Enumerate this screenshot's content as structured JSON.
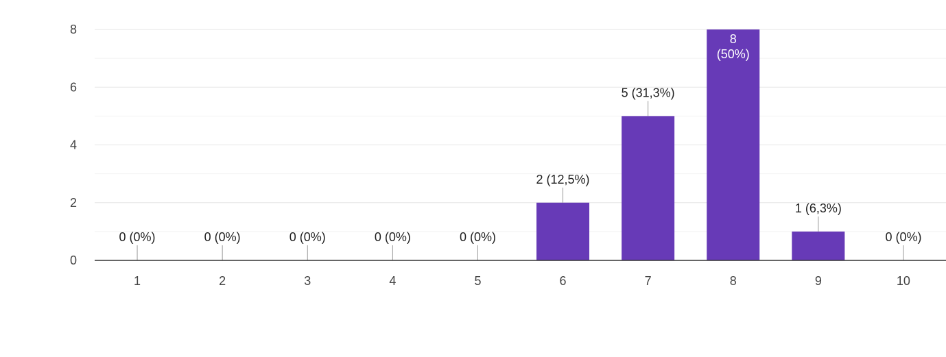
{
  "chart_data": {
    "type": "bar",
    "categories": [
      "1",
      "2",
      "3",
      "4",
      "5",
      "6",
      "7",
      "8",
      "9",
      "10"
    ],
    "values": [
      0,
      0,
      0,
      0,
      0,
      2,
      5,
      8,
      1,
      0
    ],
    "data_labels": [
      "0 (0%)",
      "0 (0%)",
      "0 (0%)",
      "0 (0%)",
      "0 (0%)",
      "2 (12,5%)",
      "5 (31,3%)",
      "8 (50%)",
      "1 (6,3%)",
      "0 (0%)"
    ],
    "y_ticks": [
      0,
      2,
      4,
      6,
      8
    ],
    "ylim": [
      0,
      8
    ],
    "title": "",
    "xlabel": "",
    "ylabel": "",
    "grid": true,
    "bar_color": "#673ab7"
  }
}
